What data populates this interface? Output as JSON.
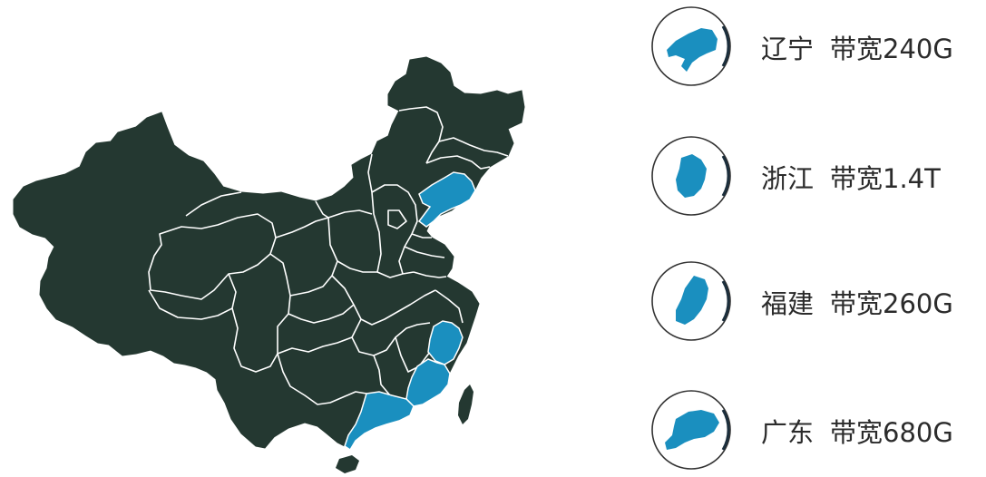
{
  "colors": {
    "land": "#243831",
    "border": "#ffffff",
    "highlight": "#1a8fbf",
    "ring": "#333333",
    "ring_accent": "#1b2e3c",
    "text": "#2b2b2b"
  },
  "highlighted_provinces": [
    "辽宁",
    "浙江",
    "福建",
    "广东"
  ],
  "legend": [
    {
      "province": "辽宁",
      "bandwidth": "带宽240G",
      "icon": "liaoning-province-icon"
    },
    {
      "province": "浙江",
      "bandwidth": "带宽1.4T",
      "icon": "zhejiang-province-icon"
    },
    {
      "province": "福建",
      "bandwidth": "带宽260G",
      "icon": "fujian-province-icon"
    },
    {
      "province": "广东",
      "bandwidth": "带宽680G",
      "icon": "guangdong-province-icon"
    }
  ]
}
